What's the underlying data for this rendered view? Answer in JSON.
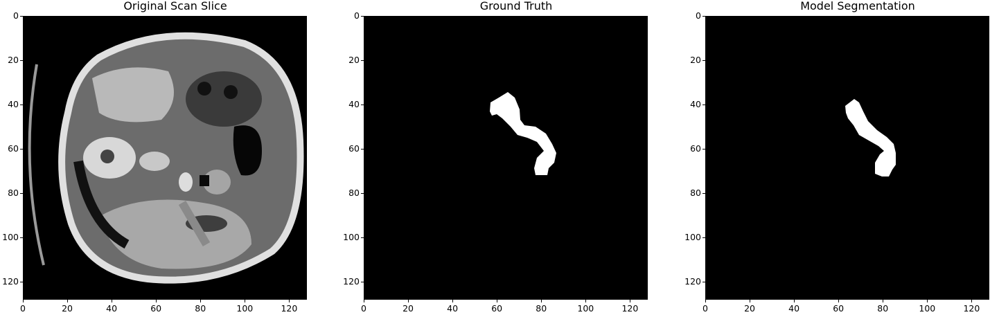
{
  "figure": {
    "panels": [
      {
        "id": "original",
        "title": "Original Scan Slice",
        "image": "ct-axial-abdomen-grayscale",
        "x_ticks": [
          "0",
          "20",
          "40",
          "60",
          "80",
          "100",
          "120"
        ],
        "y_ticks": [
          "0",
          "20",
          "40",
          "60",
          "80",
          "100",
          "120"
        ]
      },
      {
        "id": "ground-truth",
        "title": "Ground Truth",
        "image": "binary-mask",
        "x_ticks": [
          "0",
          "20",
          "40",
          "60",
          "80",
          "100",
          "120"
        ],
        "y_ticks": [
          "0",
          "20",
          "40",
          "60",
          "80",
          "100",
          "120"
        ]
      },
      {
        "id": "model",
        "title": "Model Segmentation",
        "image": "binary-mask",
        "x_ticks": [
          "0",
          "20",
          "40",
          "60",
          "80",
          "100",
          "120"
        ],
        "y_ticks": [
          "0",
          "20",
          "40",
          "60",
          "80",
          "100",
          "120"
        ]
      }
    ],
    "axis_range": [
      0,
      128
    ],
    "colors": {
      "background": "#000000",
      "mask": "#ffffff",
      "tissue": "#c8c8c8"
    }
  }
}
